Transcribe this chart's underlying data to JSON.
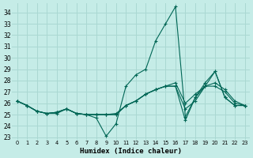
{
  "xlabel": "Humidex (Indice chaleur)",
  "background_color": "#c5ece7",
  "grid_color": "#aad8d2",
  "line_color": "#006655",
  "xlim": [
    -0.5,
    23.5
  ],
  "ylim": [
    22.8,
    34.8
  ],
  "yticks": [
    23,
    24,
    25,
    26,
    27,
    28,
    29,
    30,
    31,
    32,
    33,
    34
  ],
  "xticks": [
    0,
    1,
    2,
    3,
    4,
    5,
    6,
    7,
    8,
    9,
    10,
    11,
    12,
    13,
    14,
    15,
    16,
    17,
    18,
    19,
    20,
    21,
    22,
    23
  ],
  "series": [
    [
      26.2,
      25.8,
      25.3,
      25.1,
      25.1,
      25.5,
      25.1,
      25.0,
      24.7,
      23.1,
      24.2,
      27.5,
      28.5,
      29.0,
      31.5,
      33.0,
      34.5,
      24.8,
      26.5,
      27.8,
      28.8,
      26.5,
      25.8,
      25.8
    ],
    [
      26.2,
      25.8,
      25.3,
      25.1,
      25.2,
      25.5,
      25.1,
      25.0,
      25.0,
      25.0,
      25.1,
      25.8,
      26.2,
      26.8,
      27.2,
      27.5,
      27.8,
      26.0,
      26.8,
      27.5,
      27.8,
      27.2,
      26.2,
      25.8
    ],
    [
      26.2,
      25.8,
      25.3,
      25.1,
      25.2,
      25.5,
      25.1,
      25.0,
      25.0,
      25.0,
      25.0,
      25.8,
      26.2,
      26.8,
      27.2,
      27.5,
      27.5,
      25.5,
      26.2,
      27.5,
      27.5,
      27.0,
      26.0,
      25.8
    ],
    [
      26.2,
      25.8,
      25.3,
      25.1,
      25.2,
      25.5,
      25.1,
      25.0,
      25.0,
      25.0,
      25.0,
      25.8,
      26.2,
      26.8,
      27.2,
      27.5,
      27.5,
      24.5,
      26.5,
      27.5,
      28.8,
      26.5,
      25.8,
      25.8
    ]
  ]
}
